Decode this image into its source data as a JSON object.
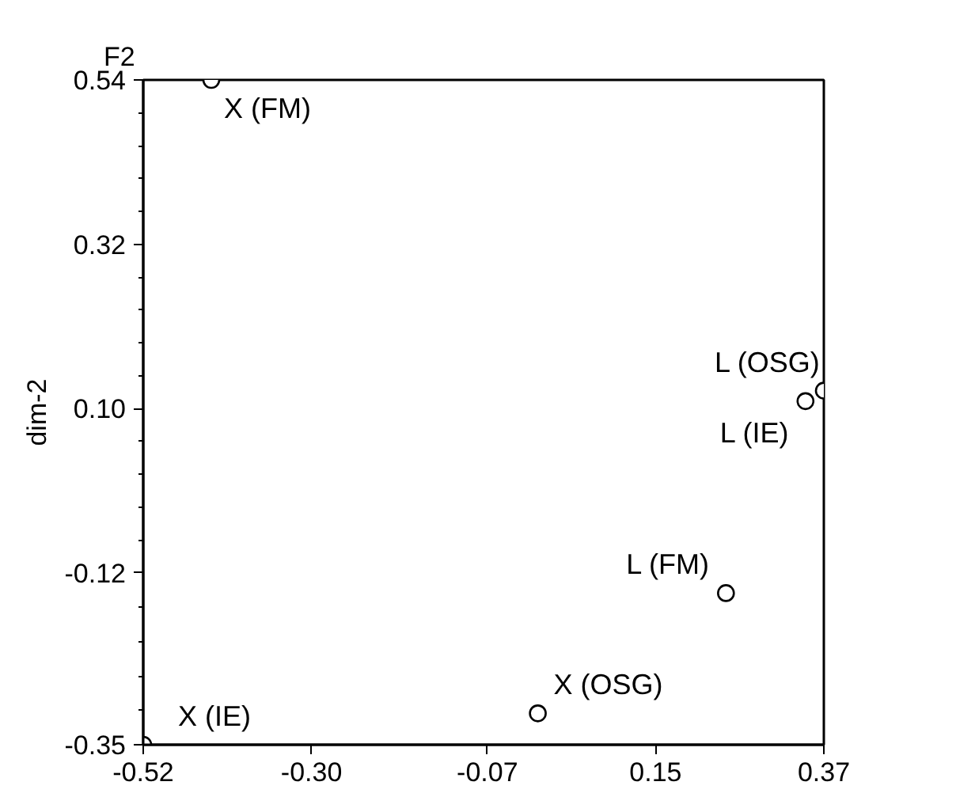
{
  "chart_data": {
    "type": "scatter",
    "ylabel": "dim-2",
    "x": [
      -0.431,
      0.37,
      0.346,
      0.242,
      -0.004,
      -0.52
    ],
    "series": [
      {
        "color": "#ffffff",
        "values": [
          0.54,
          0.124,
          0.11,
          -0.147,
          -0.308,
          -0.35
        ]
      }
    ],
    "marker": "circle",
    "grid": false,
    "xlim": [
      -0.52,
      0.37
    ],
    "xticks": [
      {
        "value": -0.52,
        "label": "-0.52"
      },
      {
        "value": -0.3,
        "label": "-0.30"
      },
      {
        "value": -0.07,
        "label": "-0.07"
      },
      {
        "value": 0.15,
        "label": "0.15"
      },
      {
        "value": 0.37,
        "label": "0.37"
      }
    ],
    "ylim": [
      -0.35,
      0.54
    ],
    "yticks": [
      {
        "value": -0.35,
        "label": "-0.35"
      },
      {
        "value": -0.12,
        "label": "-0.12"
      },
      {
        "value": 0.1,
        "label": "0.10"
      },
      {
        "value": 0.32,
        "label": "0.32"
      },
      {
        "value": 0.54,
        "label": "0.54"
      }
    ],
    "annotations": [
      "F2",
      {
        "text": "X (FM)",
        "x": -0.431,
        "y": 0.54
      },
      {
        "text": "L (OSG)",
        "x": 0.37,
        "y": 0.124
      },
      {
        "text": "L (IE)",
        "x": 0.346,
        "y": 0.11
      },
      {
        "text": "L (FM)",
        "x": 0.242,
        "y": -0.147
      },
      {
        "text": "X (OSG)",
        "x": -0.004,
        "y": -0.308
      },
      {
        "text": "X (IE)",
        "x": -0.52,
        "y": -0.35
      }
    ]
  }
}
